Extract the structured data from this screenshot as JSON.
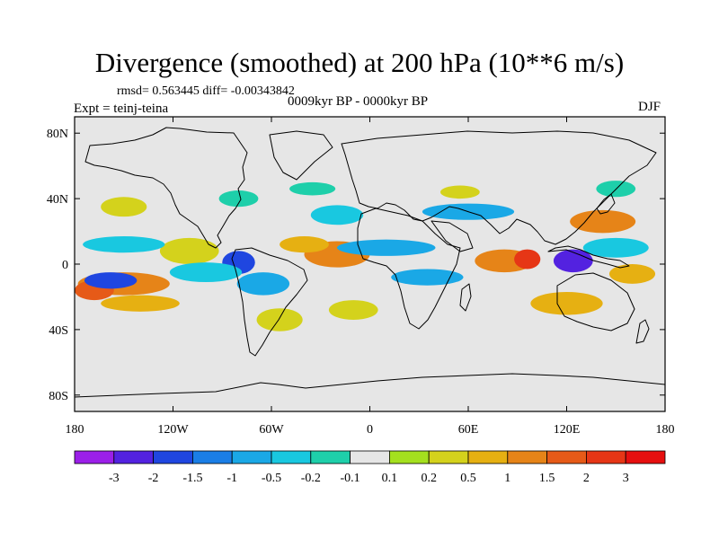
{
  "header": {
    "title": "Divergence (smoothed) at 200 hPa (10**6 m/s)",
    "stats": "rmsd= 0.563445 diff= -0.00343842",
    "period": "0009kyr BP - 0000kyr BP",
    "experiment": "Expt = teinj-teina",
    "season": "DJF"
  },
  "chart_data": {
    "type": "heatmap",
    "title": "Divergence (smoothed) at 200 hPa (10**6 m/s)",
    "subtitle": "0009kyr BP - 0000kyr BP",
    "projection": "cylindrical equidistant",
    "xlim": [
      -180,
      180
    ],
    "ylim": [
      -90,
      90
    ],
    "x_ticks": [
      {
        "value": -180,
        "label": "180"
      },
      {
        "value": -120,
        "label": "120W"
      },
      {
        "value": -60,
        "label": "60W"
      },
      {
        "value": 0,
        "label": "0"
      },
      {
        "value": 60,
        "label": "60E"
      },
      {
        "value": 120,
        "label": "120E"
      },
      {
        "value": 180,
        "label": "180"
      }
    ],
    "y_ticks": [
      {
        "value": 80,
        "label": "80N"
      },
      {
        "value": 40,
        "label": "40N"
      },
      {
        "value": 0,
        "label": "0"
      },
      {
        "value": -40,
        "label": "40S"
      },
      {
        "value": -80,
        "label": "80S"
      }
    ],
    "colorbar": {
      "levels": [
        -3,
        -2,
        -1.5,
        -1,
        -0.5,
        -0.2,
        -0.1,
        0.1,
        0.2,
        0.5,
        1,
        1.5,
        2,
        3
      ],
      "labels": [
        "-3",
        "-2",
        "-1.5",
        "-1",
        "-0.5",
        "-0.2",
        "-0.1",
        "0.1",
        "0.2",
        "0.5",
        "1",
        "1.5",
        "2",
        "3"
      ],
      "colors": [
        "#9b1fe8",
        "#5322e0",
        "#1f46e0",
        "#1a7ee6",
        "#1aa8e6",
        "#19c8e0",
        "#1ecfaa",
        "#e6e6e6",
        "#a4e01e",
        "#d4d21c",
        "#e6b012",
        "#e68418",
        "#e65a18",
        "#e63616",
        "#e60f0f"
      ]
    },
    "features": [
      {
        "name": "positive",
        "lon": -20,
        "lat": 6,
        "rlon": 20,
        "rlat": 8,
        "level": 11
      },
      {
        "name": "positive",
        "lon": -110,
        "lat": 8,
        "rlon": 18,
        "rlat": 8,
        "level": 9
      },
      {
        "name": "positive",
        "lon": -40,
        "lat": 12,
        "rlon": 15,
        "rlat": 5,
        "level": 10
      },
      {
        "name": "positive",
        "lon": -150,
        "lat": -12,
        "rlon": 28,
        "rlat": 7,
        "level": 11
      },
      {
        "name": "positive",
        "lon": -168,
        "lat": -16,
        "rlon": 12,
        "rlat": 6,
        "level": 12
      },
      {
        "name": "positive",
        "lon": -140,
        "lat": -24,
        "rlon": 24,
        "rlat": 5,
        "level": 10
      },
      {
        "name": "positive",
        "lon": 82,
        "lat": 2,
        "rlon": 18,
        "rlat": 7,
        "level": 11
      },
      {
        "name": "positive",
        "lon": 96,
        "lat": 3,
        "rlon": 8,
        "rlat": 6,
        "level": 13
      },
      {
        "name": "positive",
        "lon": 142,
        "lat": 26,
        "rlon": 20,
        "rlat": 7,
        "level": 11
      },
      {
        "name": "positive",
        "lon": 120,
        "lat": -24,
        "rlon": 22,
        "rlat": 7,
        "level": 10
      },
      {
        "name": "positive",
        "lon": 160,
        "lat": -6,
        "rlon": 14,
        "rlat": 6,
        "level": 10
      },
      {
        "name": "positive",
        "lon": -10,
        "lat": -28,
        "rlon": 15,
        "rlat": 6,
        "level": 9
      },
      {
        "name": "positive",
        "lon": -55,
        "lat": -34,
        "rlon": 14,
        "rlat": 7,
        "level": 9
      },
      {
        "name": "positive",
        "lon": 55,
        "lat": 44,
        "rlon": 12,
        "rlat": 4,
        "level": 9
      },
      {
        "name": "positive",
        "lon": -150,
        "lat": 35,
        "rlon": 14,
        "rlat": 6,
        "level": 9
      },
      {
        "name": "negative",
        "lon": 124,
        "lat": 2,
        "rlon": 12,
        "rlat": 7,
        "level": 1
      },
      {
        "name": "negative",
        "lon": -158,
        "lat": -10,
        "rlon": 16,
        "rlat": 5,
        "level": 2
      },
      {
        "name": "negative",
        "lon": -80,
        "lat": 1,
        "rlon": 10,
        "rlat": 7,
        "level": 2
      },
      {
        "name": "negative",
        "lon": -65,
        "lat": -12,
        "rlon": 16,
        "rlat": 7,
        "level": 4
      },
      {
        "name": "negative",
        "lon": 10,
        "lat": 10,
        "rlon": 30,
        "rlat": 5,
        "level": 4
      },
      {
        "name": "negative",
        "lon": 35,
        "lat": -8,
        "rlon": 22,
        "rlat": 5,
        "level": 4
      },
      {
        "name": "negative",
        "lon": -100,
        "lat": -5,
        "rlon": 22,
        "rlat": 6,
        "level": 5
      },
      {
        "name": "negative",
        "lon": -150,
        "lat": 12,
        "rlon": 25,
        "rlat": 5,
        "level": 5
      },
      {
        "name": "negative",
        "lon": -20,
        "lat": 30,
        "rlon": 16,
        "rlat": 6,
        "level": 5
      },
      {
        "name": "negative",
        "lon": 60,
        "lat": 32,
        "rlon": 28,
        "rlat": 5,
        "level": 4
      },
      {
        "name": "negative",
        "lon": 150,
        "lat": 10,
        "rlon": 20,
        "rlat": 6,
        "level": 5
      },
      {
        "name": "negative",
        "lon": 150,
        "lat": 46,
        "rlon": 12,
        "rlat": 5,
        "level": 6
      },
      {
        "name": "negative",
        "lon": -35,
        "lat": 46,
        "rlon": 14,
        "rlat": 4,
        "level": 6
      },
      {
        "name": "negative",
        "lon": -80,
        "lat": 40,
        "rlon": 12,
        "rlat": 5,
        "level": 6
      }
    ]
  }
}
